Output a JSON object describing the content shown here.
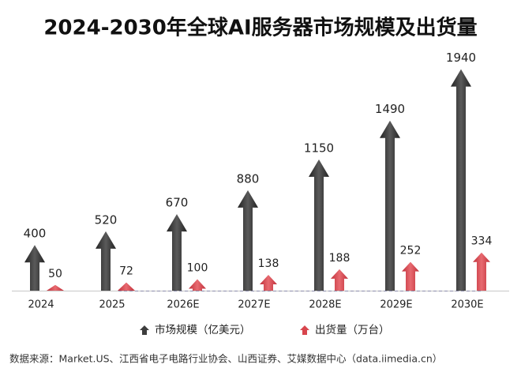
{
  "chart_data": {
    "type": "arrow-bar",
    "title": "2024-2030年全球AI服务器市场规模及出货量",
    "categories": [
      "2024",
      "2025",
      "2026E",
      "2027E",
      "2028E",
      "2029E",
      "2030E"
    ],
    "series": [
      {
        "name": "市场规模（亿美元）",
        "color": "#3d3d3d",
        "values": [
          400,
          520,
          670,
          880,
          1150,
          1490,
          1940
        ]
      },
      {
        "name": "出货量（万台）",
        "color": "#d8454d",
        "values": [
          50,
          72,
          100,
          138,
          188,
          252,
          334
        ]
      }
    ],
    "source": "数据来源：Market.US、江西省电子电路行业协会、山西证券、艾媒数据中心（data.iimedia.cn）"
  }
}
